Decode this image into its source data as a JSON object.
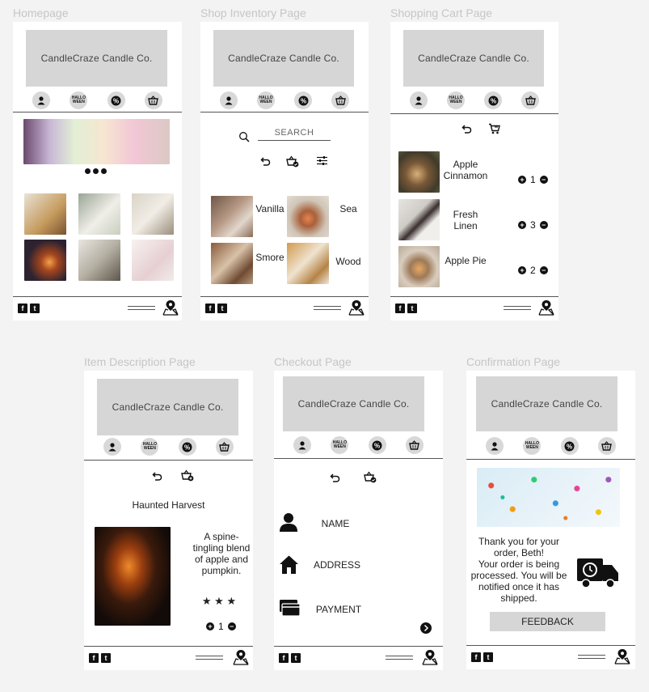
{
  "brand": "CandleCraze Candle Co.",
  "nav": {
    "account": "account-icon",
    "halloween_line1": "HALLO",
    "halloween_line2": "WEEN",
    "sale": "percent-sale-icon",
    "basket": "basket-icon"
  },
  "footer": {
    "facebook": "f",
    "twitter": "t"
  },
  "frames": {
    "homepage": {
      "label": "Homepage"
    },
    "inventory": {
      "label": "Shop Inventory Page",
      "search_placeholder": "SEARCH",
      "items": [
        {
          "name": "Vanilla"
        },
        {
          "name": "Sea"
        },
        {
          "name": "Smore"
        },
        {
          "name": "Wood"
        }
      ]
    },
    "cart": {
      "label": "Shopping Cart Page",
      "items": [
        {
          "name_line1": "Apple",
          "name_line2": "Cinnamon",
          "qty": "1"
        },
        {
          "name_line1": "Fresh",
          "name_line2": "Linen",
          "qty": "3"
        },
        {
          "name_line1": "Apple Pie",
          "name_line2": "",
          "qty": "2"
        }
      ]
    },
    "item": {
      "label": "Item Description Page",
      "title": "Haunted Harvest",
      "desc1": "A spine-",
      "desc2": "tingling blend",
      "desc3": "of apple and",
      "desc4": "pumpkin.",
      "stars": "★ ★ ★",
      "qty": "1"
    },
    "checkout": {
      "label": "Checkout Page",
      "name": "NAME",
      "address": "ADDRESS",
      "payment": "PAYMENT"
    },
    "confirmation": {
      "label": "Confirmation Page",
      "line1": "Thank you for your",
      "line2": "order, Beth!",
      "line3": "Your order is being",
      "line4": "processed. You will be",
      "line5": "notified once it has",
      "line6": "shipped.",
      "feedback": "FEEDBACK"
    }
  },
  "colors": {
    "canvas": "#f3f3f3",
    "banner": "#d6d6d6",
    "nav_circle": "#d8d8d8"
  }
}
